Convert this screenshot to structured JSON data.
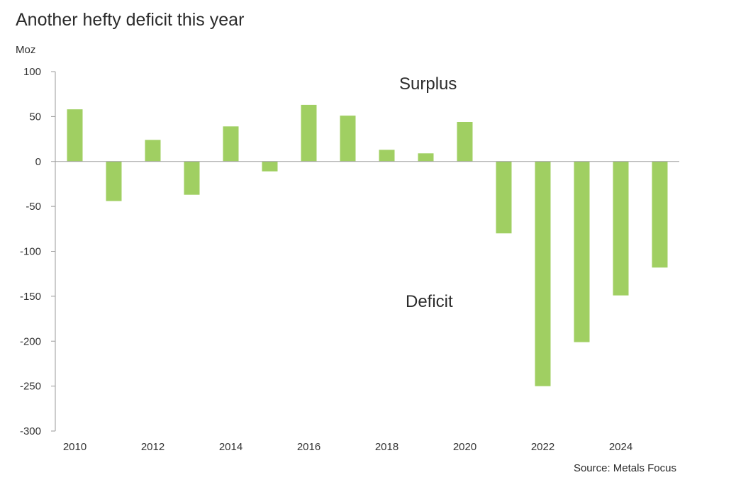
{
  "chart_data": {
    "type": "bar",
    "title": "Another hefty deficit this year",
    "ylabel": "Moz",
    "source": "Source: Metals Focus",
    "ylim": [
      -300,
      100
    ],
    "yticks": [
      100,
      50,
      0,
      -50,
      -100,
      -150,
      -200,
      -250,
      -300
    ],
    "x": [
      2010,
      2011,
      2012,
      2013,
      2014,
      2015,
      2016,
      2017,
      2018,
      2019,
      2020,
      2021,
      2022,
      2023,
      2024,
      2025
    ],
    "xtick_labels": [
      "2010",
      "2012",
      "2014",
      "2016",
      "2018",
      "2020",
      "2022",
      "2024"
    ],
    "values": [
      58,
      -44,
      24,
      -37,
      39,
      -11,
      63,
      51,
      13,
      9,
      44,
      -80,
      -250,
      -201,
      -149,
      -118
    ],
    "bar_color": "#a0cf62",
    "annotations": {
      "surplus": "Surplus",
      "deficit": "Deficit"
    },
    "grid": false
  }
}
